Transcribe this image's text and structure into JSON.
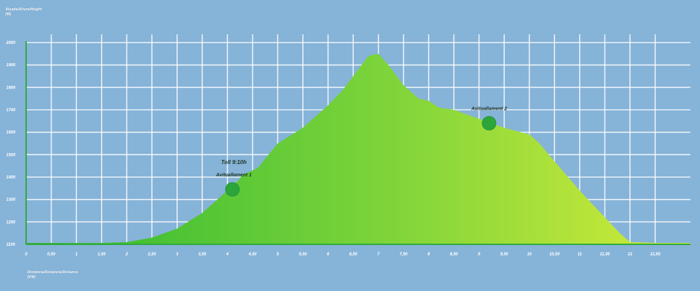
{
  "chart_data": {
    "type": "area",
    "ylabel": "Alçada/Altura/Height",
    "yunit": "(M)",
    "xlabel": "Distància/Distancia/Distance",
    "xunit": "(KM)",
    "xlim": [
      0,
      13.2
    ],
    "ylim": [
      1100,
      2000
    ],
    "y_ticks": [
      "2000",
      "1900",
      "1800",
      "1700",
      "1600",
      "1500",
      "1400",
      "1300",
      "1200",
      "1100"
    ],
    "y_tick_values": [
      2000,
      1900,
      1800,
      1700,
      1600,
      1500,
      1400,
      1300,
      1200,
      1100
    ],
    "x_ticks": [
      "0",
      "0,50",
      "1",
      "1,50",
      "2",
      "2,50",
      "3",
      "3,50",
      "4",
      "4,50",
      "5",
      "5,50",
      "6",
      "6,50",
      "7",
      "7,50",
      "8",
      "8,50",
      "9",
      "9,50",
      "10",
      "10,50",
      "11",
      "11,50",
      "12",
      "12,50"
    ],
    "x_tick_values": [
      0,
      0.5,
      1,
      1.5,
      2,
      2.5,
      3,
      3.5,
      4,
      4.5,
      5,
      5.5,
      6,
      6.5,
      7,
      7.5,
      8,
      8.5,
      9,
      9.5,
      10,
      10.5,
      11,
      11.5,
      12,
      12.5
    ],
    "grid": true,
    "colors": {
      "area_start": "#2db832",
      "area_end": "#d4ec3a",
      "grid": "#ffffff",
      "marker": "#2ca53a",
      "axis": "#2eaa3a"
    },
    "series": [
      {
        "x": [
          0,
          0.5,
          1,
          1.5,
          2,
          2.5,
          3,
          3.5,
          3.8,
          4,
          4.2,
          4.3,
          4.5,
          4.6,
          5,
          5.5,
          6,
          6.3,
          6.6,
          6.8,
          7,
          7.2,
          7.5,
          7.8,
          8,
          8.2,
          8.5,
          9,
          9.5,
          10,
          10.2,
          10.5,
          11,
          11.5,
          11.8,
          12,
          12.5,
          13.2
        ],
        "y": [
          1106,
          1106,
          1106,
          1106,
          1110,
          1130,
          1170,
          1240,
          1300,
          1340,
          1380,
          1410,
          1430,
          1440,
          1550,
          1620,
          1720,
          1790,
          1880,
          1940,
          1950,
          1900,
          1810,
          1750,
          1740,
          1710,
          1700,
          1660,
          1620,
          1590,
          1550,
          1470,
          1340,
          1220,
          1150,
          1110,
          1106,
          1106
        ]
      }
    ],
    "annotations": [
      {
        "label_time": "Toll 9:10h",
        "label": "Avituallament 1",
        "x": 4.1,
        "y": 1345
      },
      {
        "label": "Avituallament 2",
        "x": 9.2,
        "y": 1640
      }
    ]
  }
}
